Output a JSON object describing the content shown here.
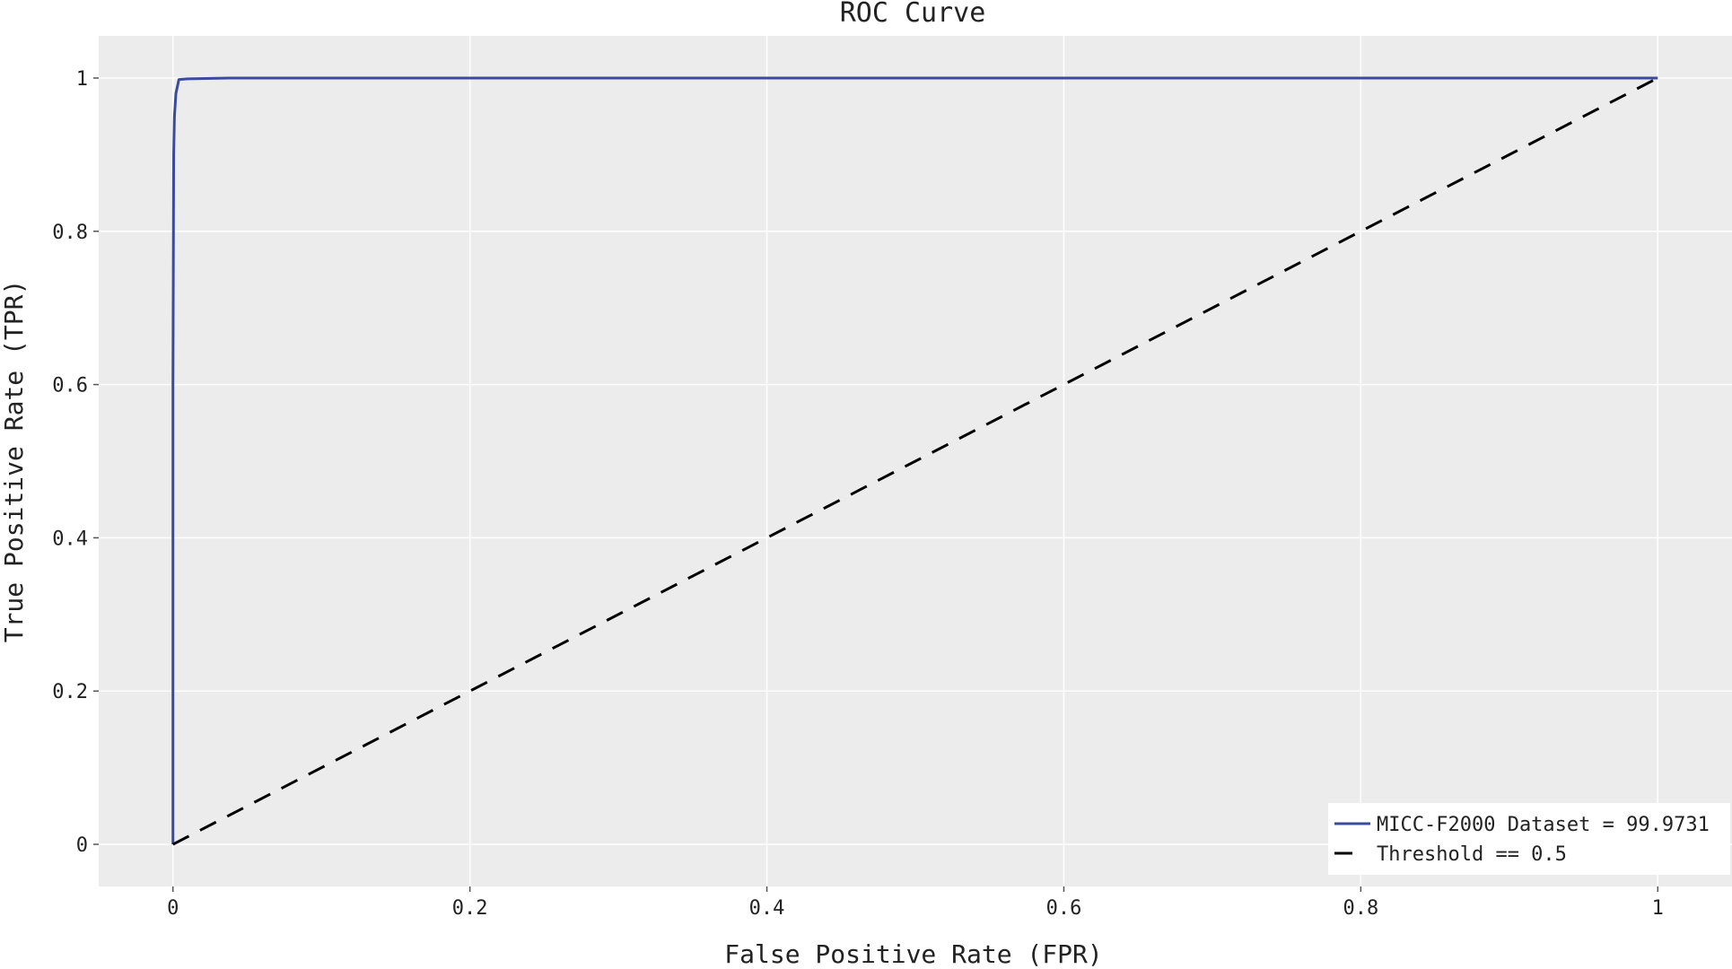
{
  "chart_data": {
    "type": "line",
    "title": "ROC Curve",
    "xlabel": "False Positive Rate (FPR)",
    "ylabel": "True Positive Rate (TPR)",
    "xlim": [
      -0.05,
      1.05
    ],
    "ylim": [
      -0.055,
      1.055
    ],
    "x_ticks": [
      0,
      0.2,
      0.4,
      0.6,
      0.8,
      1
    ],
    "x_tick_labels": [
      "0",
      "0.2",
      "0.4",
      "0.6",
      "0.8",
      "1"
    ],
    "y_ticks": [
      0,
      0.2,
      0.4,
      0.6,
      0.8,
      1
    ],
    "y_tick_labels": [
      "0",
      "0.2",
      "0.4",
      "0.6",
      "0.8",
      "1"
    ],
    "grid": true,
    "background_color": "#ececec",
    "grid_color": "#ffffff",
    "legend_position": "bottom-right",
    "series": [
      {
        "name": "MICC-F2000 Dataset = 99.9731",
        "color": "#3b4b9b",
        "style": "solid",
        "x": [
          0,
          0,
          0.0005,
          0.001,
          0.002,
          0.004,
          0.01,
          0.04,
          1
        ],
        "y": [
          0,
          0.6,
          0.9,
          0.95,
          0.98,
          0.998,
          0.999,
          1,
          1
        ]
      },
      {
        "name": "Threshold == 0.5",
        "color": "#000000",
        "style": "dashed",
        "x": [
          0,
          1
        ],
        "y": [
          0,
          1
        ]
      }
    ]
  }
}
